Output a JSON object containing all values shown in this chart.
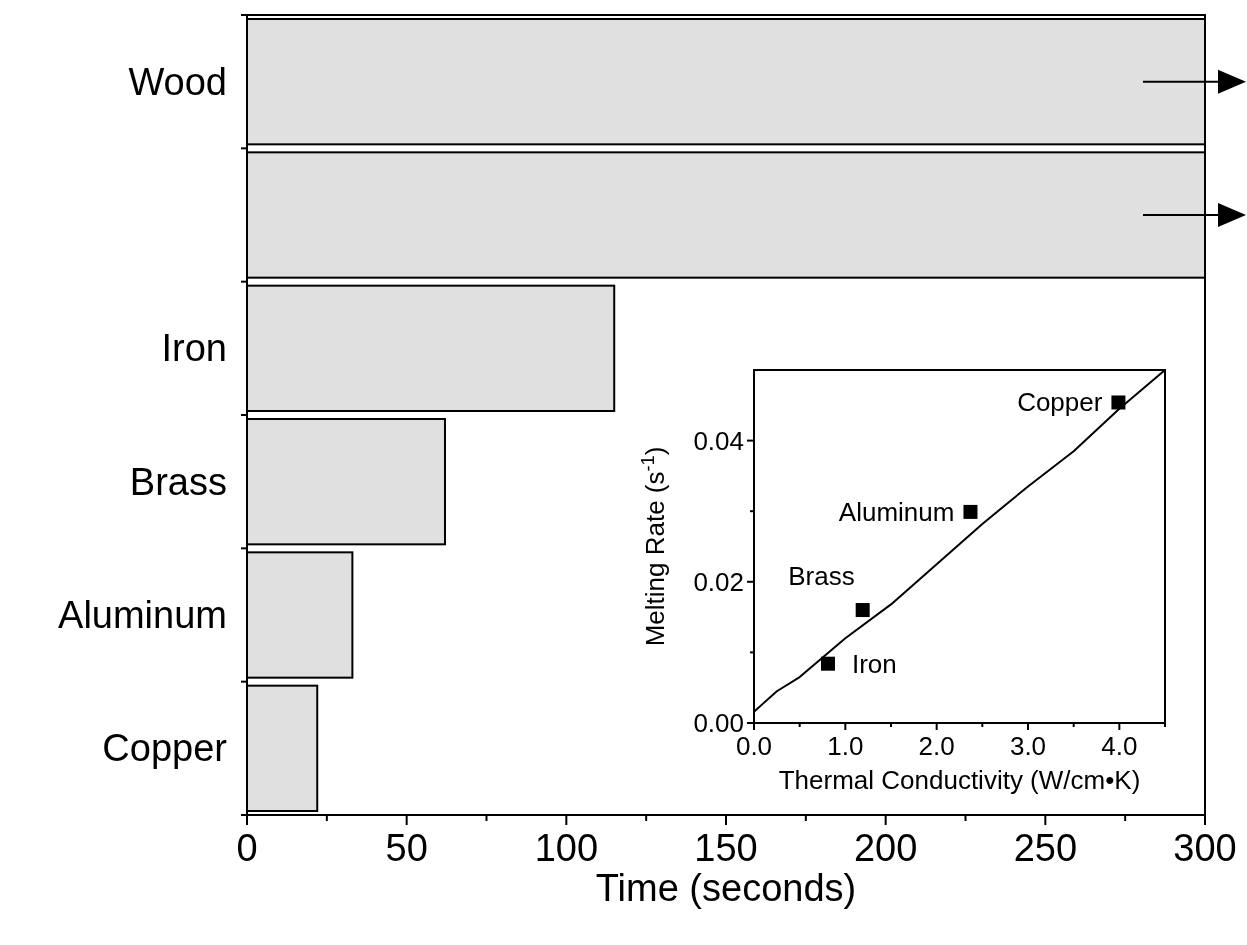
{
  "chart_data": [
    {
      "type": "bar",
      "orientation": "horizontal",
      "categories": [
        "Wood",
        null,
        "Iron",
        "Brass",
        "Aluminum",
        "Copper"
      ],
      "values": [
        300,
        300,
        115,
        62,
        33,
        22
      ],
      "color": "#e0e0e0",
      "xlim": [
        0,
        300
      ],
      "xticks": [
        0,
        {
          "value": 25,
          "label": null
        },
        50,
        {
          "value": 75,
          "label": null
        },
        100,
        {
          "value": 125,
          "label": null
        },
        150,
        {
          "value": 175,
          "label": null
        },
        200,
        {
          "value": 225,
          "label": null
        },
        250,
        {
          "value": 275,
          "label": null
        },
        300
      ],
      "xlabel": "Time (seconds)"
    },
    {
      "type": "scatter",
      "xlabel": "Thermal Conductivity (W/cm•K)",
      "ylabel": "Melting Rate (s$^{-1}$)",
      "xlim": [
        0,
        4.5
      ],
      "ylim": [
        0,
        0.05
      ],
      "xticks": [
        {
          "value": 0,
          "label": "0.0"
        },
        {
          "value": 0.5,
          "label": null
        },
        {
          "value": 1,
          "label": "1.0"
        },
        {
          "value": 1.5,
          "label": null
        },
        {
          "value": 2,
          "label": "2.0"
        },
        {
          "value": 2.5,
          "label": null
        },
        {
          "value": 3,
          "label": "3.0"
        },
        {
          "value": 3.5,
          "label": null
        },
        {
          "value": 4,
          "label": "4.0"
        },
        {
          "value": 4.5,
          "label": null
        }
      ],
      "yticks": [
        {
          "value": 0,
          "label": "0.00"
        },
        {
          "value": 0.01,
          "label": null
        },
        {
          "value": 0.02,
          "label": "0.02"
        },
        {
          "value": 0.03,
          "label": null
        },
        {
          "value": 0.04,
          "label": "0.04"
        }
      ],
      "series": [
        {
          "type": "scatter",
          "marker": "square",
          "color": "#000000",
          "x": [
            0.81,
            1.19,
            2.37,
            3.99
          ],
          "values": [
            0.0084,
            0.016,
            0.0299,
            0.0454
          ]
        },
        {
          "type": "line",
          "marker": "none",
          "color": "#000000",
          "x": [
            0,
            0.25,
            0.5,
            1,
            1.5,
            2,
            2.5,
            3,
            3.5,
            4,
            4.5
          ],
          "values": [
            0.0016,
            0.0045,
            0.0065,
            0.012,
            0.0168,
            0.0225,
            0.0282,
            0.0335,
            0.0385,
            0.0445,
            0.05
          ]
        }
      ],
      "annotations": [
        {
          "text": "Iron",
          "x": 0.81,
          "y": 0.0084
        },
        {
          "text": "Brass",
          "x": 1.19,
          "y": 0.016
        },
        {
          "text": "Aluminum",
          "x": 2.37,
          "y": 0.0299
        },
        {
          "text": "Copper",
          "x": 3.99,
          "y": 0.0454
        }
      ]
    }
  ]
}
